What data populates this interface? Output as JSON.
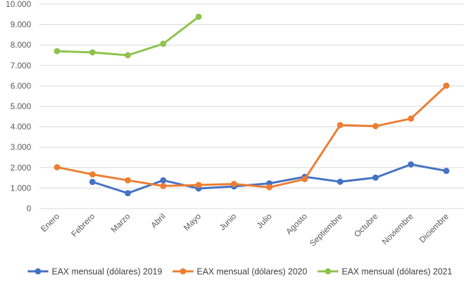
{
  "chart_data": {
    "type": "line",
    "title": "",
    "xlabel": "",
    "ylabel": "",
    "categories": [
      "Enero",
      "Febrero",
      "Marzo",
      "Abril",
      "Mayo",
      "Junio",
      "Julio",
      "Agosto",
      "Septiembre",
      "Octubre",
      "Noviembre",
      "Diciembre"
    ],
    "y_ticks": [
      "0",
      "1.000",
      "2.000",
      "3.000",
      "4.000",
      "5.000",
      "6.000",
      "7.000",
      "8.000",
      "9.000",
      "10.000"
    ],
    "ylim": [
      0,
      10000
    ],
    "grid": true,
    "legend_position": "bottom",
    "series": [
      {
        "name": "EAX mensual (dólares) 2019",
        "color": "#4472C4",
        "values": [
          null,
          1300,
          750,
          1380,
          980,
          1080,
          1230,
          1550,
          1310,
          1510,
          2160,
          1840
        ]
      },
      {
        "name": "EAX mensual (dólares) 2020",
        "color": "#ED7D31",
        "values": [
          2020,
          1670,
          1380,
          1100,
          1150,
          1200,
          1040,
          1440,
          4080,
          4030,
          4400,
          6010
        ]
      },
      {
        "name": "EAX mensual (dólares) 2021",
        "color": "#8DC34C",
        "values": [
          7700,
          7640,
          7500,
          8060,
          9380,
          null,
          null,
          null,
          null,
          null,
          null,
          null
        ]
      }
    ]
  }
}
